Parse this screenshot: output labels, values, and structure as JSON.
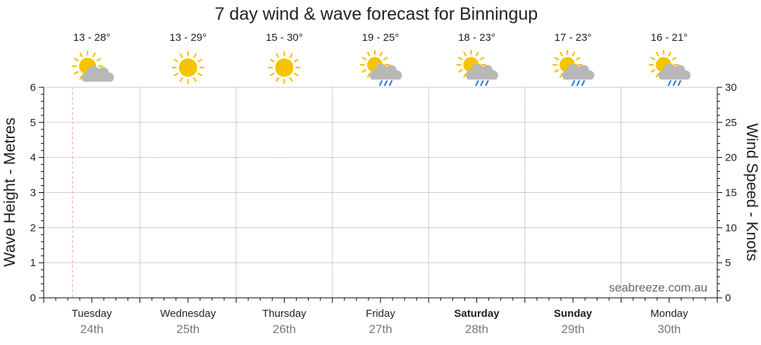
{
  "chart_data": {
    "type": "line",
    "title": "7 day wind & wave forecast for Binningup",
    "ylabel_left": "Wave Height - Metres",
    "ylabel_right": "Wind Speed - Knots",
    "ylim_left": [
      0,
      6
    ],
    "ylim_right": [
      0,
      30
    ],
    "left_ticks": [
      "0",
      "1",
      "2",
      "3",
      "4",
      "5",
      "6"
    ],
    "right_ticks": [
      "0",
      "5",
      "10",
      "15",
      "20",
      "25",
      "30"
    ],
    "grid": true,
    "current_time_marker_day_fraction": 0.3,
    "days": [
      {
        "name": "Tuesday",
        "date": "24th",
        "temp": "13 - 28°",
        "icon": "partly-cloudy-icon",
        "bold": false
      },
      {
        "name": "Wednesday",
        "date": "25th",
        "temp": "13 - 29°",
        "icon": "sun-icon",
        "bold": false
      },
      {
        "name": "Thursday",
        "date": "26th",
        "temp": "15 - 30°",
        "icon": "sun-icon",
        "bold": false
      },
      {
        "name": "Friday",
        "date": "27th",
        "temp": "19 - 25°",
        "icon": "showers-icon",
        "bold": false
      },
      {
        "name": "Saturday",
        "date": "28th",
        "temp": "18 - 23°",
        "icon": "showers-icon",
        "bold": true
      },
      {
        "name": "Sunday",
        "date": "29th",
        "temp": "17 - 23°",
        "icon": "showers-icon",
        "bold": true
      },
      {
        "name": "Monday",
        "date": "30th",
        "temp": "16 - 21°",
        "icon": "showers-icon",
        "bold": false
      }
    ],
    "series": []
  },
  "watermark": "seabreeze.com.au",
  "colors": {
    "sun": "#F5C400",
    "sun_ray": "#F5C400",
    "cloud": "#B8B8B8",
    "rain": "#2F7FD6",
    "grid": "#9a9a9a",
    "marker": "#f2a090",
    "axis": "#000000"
  }
}
